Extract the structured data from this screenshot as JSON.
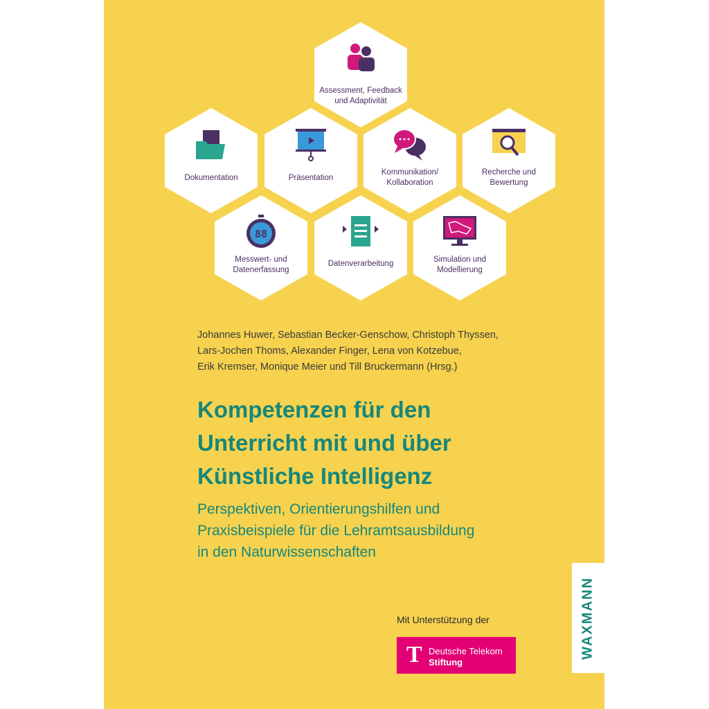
{
  "hexagons": [
    {
      "icon": "people-icon",
      "label": "Assessment, Feedback und Adaptivität"
    },
    {
      "icon": "folder-icon",
      "label": "Dokumentation"
    },
    {
      "icon": "projector-screen-icon",
      "label": "Präsentation"
    },
    {
      "icon": "speech-bubbles-icon",
      "label": "Kommunikation/ Kollaboration"
    },
    {
      "icon": "magnifier-browser-icon",
      "label": "Recherche und Bewertung"
    },
    {
      "icon": "stopwatch-icon",
      "label": "Messwert- und Datenerfassung"
    },
    {
      "icon": "document-arrows-icon",
      "label": "Datenverarbeitung"
    },
    {
      "icon": "monitor-graph-icon",
      "label": "Simulation und Modellierung"
    }
  ],
  "authors": [
    "Johannes Huwer, Sebastian Becker-Genschow, Christoph Thyssen,",
    "Lars-Jochen Thoms, Alexander Finger, Lena von Kotzebue,",
    "Erik Kremser, Monique Meier und Till Bruckermann (Hrsg.)"
  ],
  "title": [
    "Kompetenzen für den",
    "Unterricht mit und über",
    "Künstliche Intelligenz"
  ],
  "subtitle": [
    "Perspektiven, Orientierungshilfen und",
    "Praxisbeispiele für die Lehramtsausbildung",
    "in den Naturwissenschaften"
  ],
  "support_text": "Mit Unterstützung der",
  "sponsor": {
    "logo_letter": "T",
    "line1": "Deutsche Telekom",
    "line2": "Stiftung",
    "color": "#E20074"
  },
  "publisher": "WAXMANN",
  "colors": {
    "background": "#F6D24F",
    "accent": "#17877a",
    "icon_purple": "#4a2f63",
    "icon_magenta": "#d0197a",
    "icon_teal": "#2aa58f",
    "icon_blue": "#3a9ad9"
  }
}
